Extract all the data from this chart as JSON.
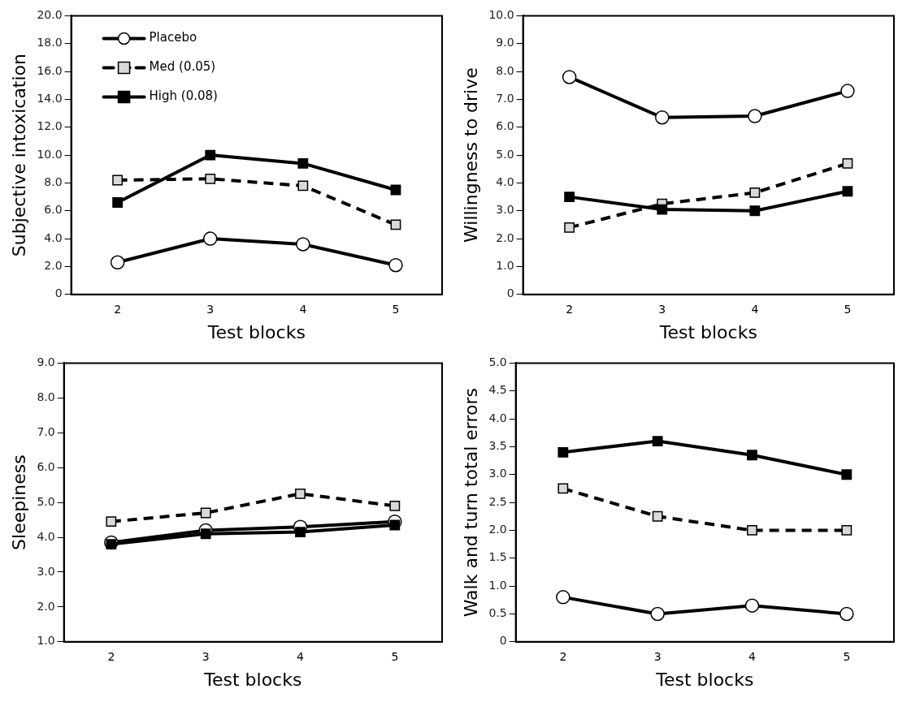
{
  "chart_data": [
    {
      "type": "line",
      "xlabel": "Test blocks",
      "ylabel": "Subjective intoxication",
      "categories": [
        "2",
        "3",
        "4",
        "5"
      ],
      "ylim": [
        0,
        20
      ],
      "yticks": [
        0,
        {
          "value": 2,
          "label": "2.0"
        },
        {
          "value": 4,
          "label": "4.0"
        },
        {
          "value": 6,
          "label": "6.0"
        },
        {
          "value": 8,
          "label": "8.0"
        },
        {
          "value": 10,
          "label": "10.0"
        },
        {
          "value": 12,
          "label": "12.0"
        },
        {
          "value": 14,
          "label": "14.0"
        },
        {
          "value": 16,
          "label": "16.0"
        },
        {
          "value": 18,
          "label": "18.0"
        },
        {
          "value": 20,
          "label": "20.0"
        }
      ],
      "legend": "top left",
      "series": [
        {
          "name": "Placebo",
          "color": "#ffffff",
          "marker": "circle",
          "line_style": "solid",
          "values": [
            2.3,
            4.0,
            3.6,
            2.1
          ]
        },
        {
          "name": "Med (0.05)",
          "color": "#d9d9d9",
          "marker": "square",
          "line_style": "dashed",
          "values": [
            8.2,
            8.3,
            7.8,
            5.0
          ]
        },
        {
          "name": "High (0.08)",
          "color": "#000000",
          "marker": "square",
          "line_style": "solid",
          "values": [
            6.6,
            10.0,
            9.4,
            7.5
          ]
        }
      ]
    },
    {
      "type": "line",
      "xlabel": "Test blocks",
      "ylabel": "Willingness to drive",
      "categories": [
        "2",
        "3",
        "4",
        "5"
      ],
      "ylim": [
        0,
        10
      ],
      "yticks": [
        0,
        {
          "value": 1,
          "label": "1.0"
        },
        {
          "value": 2,
          "label": "2.0"
        },
        {
          "value": 3,
          "label": "3.0"
        },
        {
          "value": 4,
          "label": "4.0"
        },
        {
          "value": 5,
          "label": "5.0"
        },
        {
          "value": 6,
          "label": "6.0"
        },
        {
          "value": 7,
          "label": "7.0"
        },
        {
          "value": 8,
          "label": "8.0"
        },
        {
          "value": 9,
          "label": "9.0"
        },
        {
          "value": 10,
          "label": "10.0"
        }
      ],
      "series": [
        {
          "color": "#ffffff",
          "marker": "circle",
          "line_style": "solid",
          "values": [
            7.8,
            6.35,
            6.4,
            7.3
          ]
        },
        {
          "color": "#d9d9d9",
          "marker": "square",
          "line_style": "dashed",
          "values": [
            2.4,
            3.25,
            3.65,
            4.7
          ]
        },
        {
          "color": "#000000",
          "marker": "square",
          "line_style": "solid",
          "values": [
            3.5,
            3.05,
            3.0,
            3.7
          ]
        }
      ]
    },
    {
      "type": "line",
      "xlabel": "Test blocks",
      "ylabel": "Sleepiness",
      "categories": [
        "2",
        "3",
        "4",
        "5"
      ],
      "ylim": [
        1,
        9
      ],
      "yticks": [
        {
          "value": 1,
          "label": "1.0"
        },
        {
          "value": 2,
          "label": "2.0"
        },
        {
          "value": 3,
          "label": "3.0"
        },
        {
          "value": 4,
          "label": "4.0"
        },
        {
          "value": 5,
          "label": "5.0"
        },
        {
          "value": 6,
          "label": "6.0"
        },
        {
          "value": 7,
          "label": "7.0"
        },
        {
          "value": 8,
          "label": "8.0"
        },
        {
          "value": 9,
          "label": "9.0"
        }
      ],
      "series": [
        {
          "color": "#ffffff",
          "marker": "circle",
          "line_style": "solid",
          "values": [
            3.85,
            4.2,
            4.3,
            4.45
          ]
        },
        {
          "color": "#d9d9d9",
          "marker": "square",
          "line_style": "dashed",
          "values": [
            4.45,
            4.7,
            5.25,
            4.9
          ]
        },
        {
          "color": "#000000",
          "marker": "square",
          "line_style": "solid",
          "values": [
            3.8,
            4.1,
            4.15,
            4.35
          ]
        }
      ]
    },
    {
      "type": "line",
      "xlabel": "Test blocks",
      "ylabel": "Walk and turn total errors",
      "categories": [
        "2",
        "3",
        "4",
        "5"
      ],
      "ylim": [
        0,
        5
      ],
      "yticks": [
        0,
        0.5,
        {
          "value": 1,
          "label": "1.0"
        },
        1.5,
        {
          "value": 2,
          "label": "2.0"
        },
        2.5,
        {
          "value": 3,
          "label": "3.0"
        },
        3.5,
        {
          "value": 4,
          "label": "4.0"
        },
        4.5,
        {
          "value": 5,
          "label": "5.0"
        }
      ],
      "series": [
        {
          "color": "#ffffff",
          "marker": "circle",
          "line_style": "solid",
          "values": [
            0.8,
            0.5,
            0.65,
            0.5
          ]
        },
        {
          "color": "#d9d9d9",
          "marker": "square",
          "line_style": "dashed",
          "values": [
            2.75,
            2.25,
            2.0,
            2.0
          ]
        },
        {
          "color": "#000000",
          "marker": "square",
          "line_style": "solid",
          "values": [
            3.4,
            3.6,
            3.35,
            3.0
          ]
        }
      ]
    }
  ]
}
